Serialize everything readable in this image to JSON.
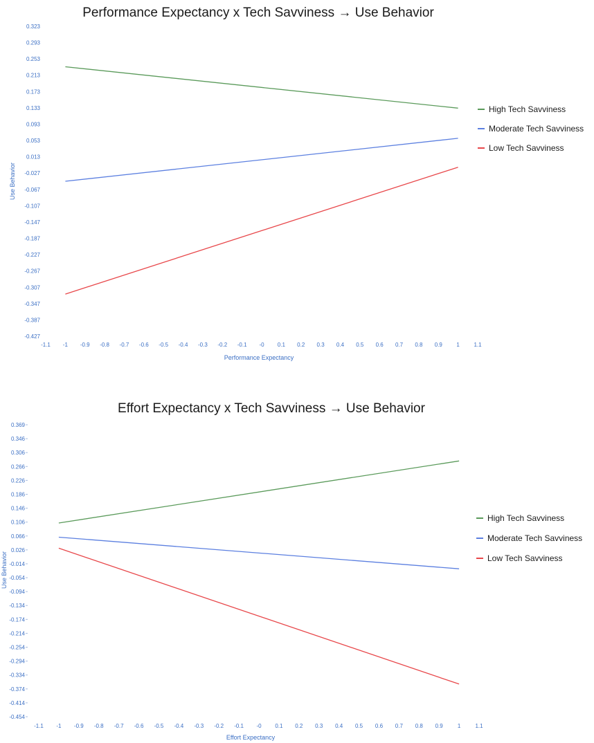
{
  "chart_data": [
    {
      "type": "line",
      "title": "Performance Expectancy x Tech Savviness → Use Behavior",
      "xlabel": "Performance Expectancy",
      "ylabel": "Use Behavior",
      "xlim": [
        -1.1,
        1.1
      ],
      "ylim": [
        -0.427,
        0.323
      ],
      "x_ticks": [
        "-1.1",
        "-1",
        "-0.9",
        "-0.8",
        "-0.7",
        "-0.6",
        "-0.5",
        "-0.4",
        "-0.3",
        "-0.2",
        "-0.1",
        "-0",
        "0.1",
        "0.2",
        "0.3",
        "0.4",
        "0.5",
        "0.6",
        "0.7",
        "0.8",
        "0.9",
        "1",
        "1.1"
      ],
      "y_ticks": [
        "0.323",
        "0.293",
        "0.253",
        "0.213",
        "0.173",
        "0.133",
        "0.093",
        "0.053",
        "0.013",
        "-0.027",
        "-0.067",
        "-0.107",
        "-0.147",
        "-0.187",
        "-0.227",
        "-0.267",
        "-0.307",
        "-0.347",
        "-0.387",
        "-0.427"
      ],
      "grid": false,
      "legend_position": "right",
      "series": [
        {
          "name": "High Tech Savviness",
          "color": "#5a9a5a",
          "x": [
            -1,
            1
          ],
          "y": [
            0.225,
            0.125
          ]
        },
        {
          "name": "Moderate Tech Savviness",
          "color": "#5b7fe0",
          "x": [
            -1,
            1
          ],
          "y": [
            -0.052,
            0.052
          ]
        },
        {
          "name": "Low Tech Savviness",
          "color": "#e8474a",
          "x": [
            -1,
            1
          ],
          "y": [
            -0.325,
            -0.018
          ]
        }
      ]
    },
    {
      "type": "line",
      "title": "Effort Expectancy x Tech Savviness → Use Behavior",
      "xlabel": "Effort Expectancy",
      "ylabel": "Use Behavior",
      "xlim": [
        -1.1,
        1.1
      ],
      "ylim": [
        -0.454,
        0.369
      ],
      "x_ticks": [
        "-1.1",
        "-1",
        "-0.9",
        "-0.8",
        "-0.7",
        "-0.6",
        "-0.5",
        "-0.4",
        "-0.3",
        "-0.2",
        "-0.1",
        "-0",
        "0.1",
        "0.2",
        "0.3",
        "0.4",
        "0.5",
        "0.6",
        "0.7",
        "0.8",
        "0.9",
        "1",
        "1.1"
      ],
      "y_ticks": [
        "0.369",
        "0.346",
        "0.306",
        "0.266",
        "0.226",
        "0.186",
        "0.146",
        "0.106",
        "0.066",
        "0.026",
        "-0.014",
        "-0.054",
        "-0.094",
        "-0.134",
        "-0.174",
        "-0.214",
        "-0.254",
        "-0.294",
        "-0.334",
        "-0.374",
        "-0.414",
        "-0.454"
      ],
      "grid": false,
      "legend_position": "right",
      "series": [
        {
          "name": "High Tech Savviness",
          "color": "#5a9a5a",
          "x": [
            -1,
            1
          ],
          "y": [
            0.092,
            0.267
          ]
        },
        {
          "name": "Moderate Tech Savviness",
          "color": "#5b7fe0",
          "x": [
            -1,
            1
          ],
          "y": [
            0.052,
            -0.037
          ]
        },
        {
          "name": "Low Tech Savviness",
          "color": "#e8474a",
          "x": [
            -1,
            1
          ],
          "y": [
            0.021,
            -0.362
          ]
        }
      ]
    }
  ]
}
